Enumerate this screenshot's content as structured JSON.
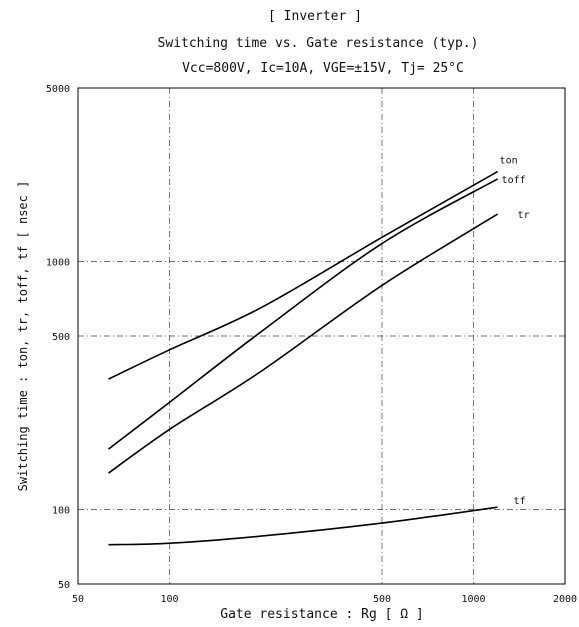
{
  "chart_data": {
    "type": "line",
    "title": "[ Inverter ]",
    "subtitle": "Switching time vs. Gate resistance (typ.)",
    "conditions": "Vcc=800V, Ic=10A, VGE=±15V, Tj= 25°C",
    "xlabel": "Gate resistance : Rg [ Ω ]",
    "ylabel": "Switching time : ton, tr, toff, tf [ nsec ]",
    "x_scale": "log",
    "y_scale": "log",
    "xlim": [
      50,
      2000
    ],
    "ylim": [
      50,
      5000
    ],
    "x_ticks": [
      50,
      100,
      500,
      1000,
      2000
    ],
    "x_tick_labels": [
      "50",
      "100",
      "500",
      "1000",
      "2000"
    ],
    "y_ticks": [
      50,
      100,
      500,
      1000,
      5000
    ],
    "y_tick_labels": [
      "50",
      "100",
      "500",
      "1000",
      "5000"
    ],
    "grid": true,
    "series": [
      {
        "name": "ton",
        "x": [
          63,
          100,
          200,
          500,
          1200
        ],
        "y": [
          335,
          440,
          650,
          1250,
          2300
        ]
      },
      {
        "name": "toff",
        "x": [
          63,
          100,
          200,
          500,
          1200
        ],
        "y": [
          175,
          270,
          520,
          1180,
          2150
        ]
      },
      {
        "name": "tr",
        "x": [
          63,
          100,
          200,
          500,
          1200
        ],
        "y": [
          140,
          210,
          360,
          800,
          1550
        ]
      },
      {
        "name": "tf",
        "x": [
          63,
          100,
          200,
          500,
          1200
        ],
        "y": [
          72,
          73,
          78,
          88,
          102
        ]
      }
    ]
  }
}
